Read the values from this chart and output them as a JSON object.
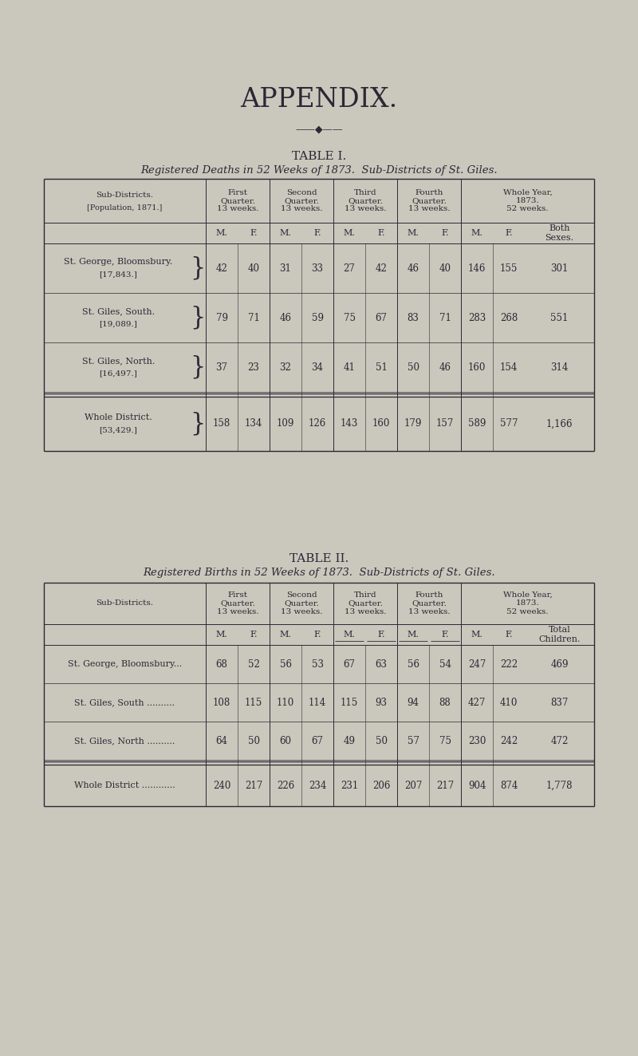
{
  "bg_color": "#cac8bc",
  "text_color": "#2a2835",
  "title_main": "APPENDIX.",
  "table1_title": "TABLE I.",
  "table1_subtitle": "Registered Deaths in 52 Weeks of 1873.  Sub-Districts of St. Giles.",
  "table2_title": "TABLE II.",
  "table2_subtitle": "Registered Births in 52 Weeks of 1873.  Sub-Districts of St. Giles.",
  "table1_col_headers_top": [
    "First\nQuarter.\n13 weeks.",
    "Second\nQuarter.\n13 weeks.",
    "Third\nQuarter.\n13 weeks.",
    "Fourth\nQuarter.\n13 weeks.",
    "Whole Year,\n1873.\n52 weeks."
  ],
  "table1_col_headers_mf": [
    "M.",
    "F.",
    "M.",
    "F.",
    "M.",
    "F.",
    "M.",
    "F.",
    "M.",
    "F.",
    "Both\nSexes."
  ],
  "table1_row_labels_line1": [
    "St. George, Bloomsbury.",
    "St. Giles, South.",
    "St. Giles, North.",
    "Whole District."
  ],
  "table1_row_labels_line2": [
    "[17,843.]",
    "[19,089.]",
    "[16,497.]",
    "[53,429.]"
  ],
  "table2_col_headers_top": [
    "First\nQuarter.\n13 weeks.",
    "Second\nQuarter.\n13 weeks.",
    "Third\nQuarter.\n13 weeks.",
    "Fourth\nQuarter.\n13 weeks.",
    "Whole Year,\n1873.\n52 weeks."
  ],
  "table2_col_headers_mf": [
    "M.",
    "F.",
    "M.",
    "F.",
    "M.",
    "F.",
    "M.",
    "F.",
    "M.",
    "F.",
    "Total\nChildren."
  ],
  "table2_row_labels": [
    "St. George, Bloomsbury...",
    "St. Giles, South ..........",
    "St. Giles, North ..........",
    "Whole District ............"
  ],
  "table1_data_str": [
    [
      "42",
      "40",
      "31",
      "33",
      "27",
      "42",
      "46",
      "40",
      "146",
      "155",
      "301"
    ],
    [
      "79",
      "71",
      "46",
      "59",
      "75",
      "67",
      "83",
      "71",
      "283",
      "268",
      "551"
    ],
    [
      "37",
      "23",
      "32",
      "34",
      "41",
      "51",
      "50",
      "46",
      "160",
      "154",
      "314"
    ],
    [
      "158",
      "134",
      "109",
      "126",
      "143",
      "160",
      "179",
      "157",
      "589",
      "577",
      "1,166"
    ]
  ],
  "table2_data_str": [
    [
      "68",
      "52",
      "56",
      "53",
      "67",
      "63",
      "56",
      "54",
      "247",
      "222",
      "469"
    ],
    [
      "108",
      "115",
      "110",
      "114",
      "115",
      "93",
      "94",
      "88",
      "427",
      "410",
      "837"
    ],
    [
      "64",
      "50",
      "60",
      "67",
      "49",
      "50",
      "57",
      "75",
      "230",
      "242",
      "472"
    ],
    [
      "240",
      "217",
      "226",
      "234",
      "231",
      "206",
      "207",
      "217",
      "904",
      "874",
      "1,778"
    ]
  ]
}
